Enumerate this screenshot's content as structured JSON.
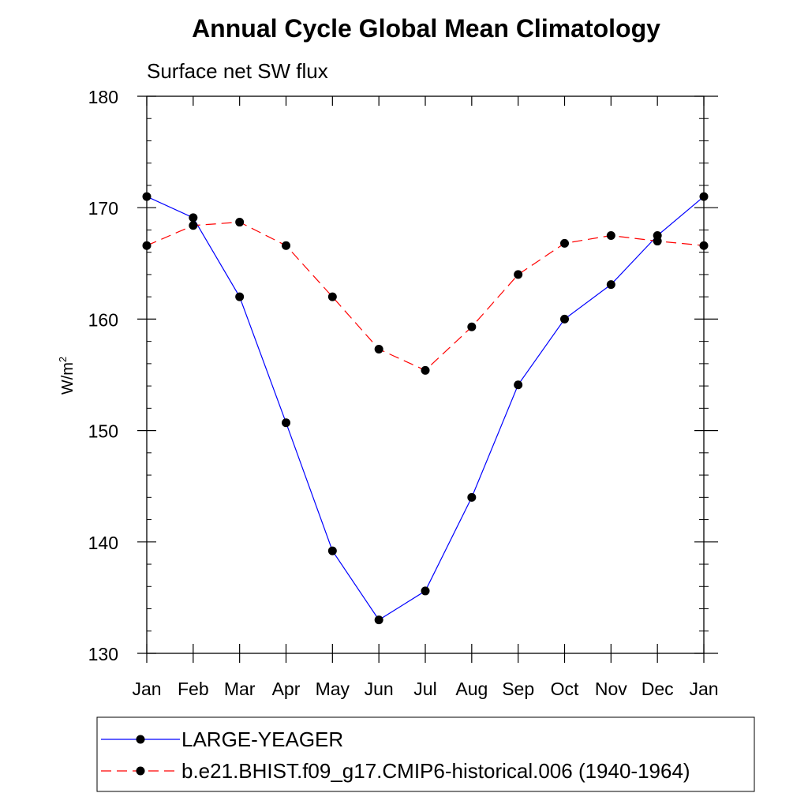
{
  "chart_data": {
    "type": "line",
    "title": "Annual Cycle Global Mean Climatology",
    "subtitle": "Surface net SW flux",
    "ylabel_base": "W/m",
    "ylabel_sup": "2",
    "xlabel": "",
    "categories": [
      "Jan",
      "Feb",
      "Mar",
      "Apr",
      "May",
      "Jun",
      "Jul",
      "Aug",
      "Sep",
      "Oct",
      "Nov",
      "Dec",
      "Jan"
    ],
    "ylim": [
      130,
      180
    ],
    "yticks": [
      130,
      140,
      150,
      160,
      170,
      180
    ],
    "grid": false,
    "legend_position": "bottom",
    "series": [
      {
        "name": "LARGE-YEAGER",
        "color": "#0000ff",
        "line_style": "solid",
        "marker": "circle",
        "values": [
          171.0,
          169.1,
          162.0,
          150.7,
          139.2,
          133.0,
          135.6,
          144.0,
          154.1,
          160.0,
          163.1,
          167.5,
          171.0
        ]
      },
      {
        "name": "b.e21.BHIST.f09_g17.CMIP6-historical.006 (1940-1964)",
        "color": "#ff0000",
        "line_style": "dashed",
        "marker": "circle",
        "values": [
          166.6,
          168.4,
          168.7,
          166.6,
          162.0,
          157.3,
          155.4,
          159.3,
          164.0,
          166.8,
          167.5,
          167.0,
          166.6
        ]
      }
    ]
  }
}
